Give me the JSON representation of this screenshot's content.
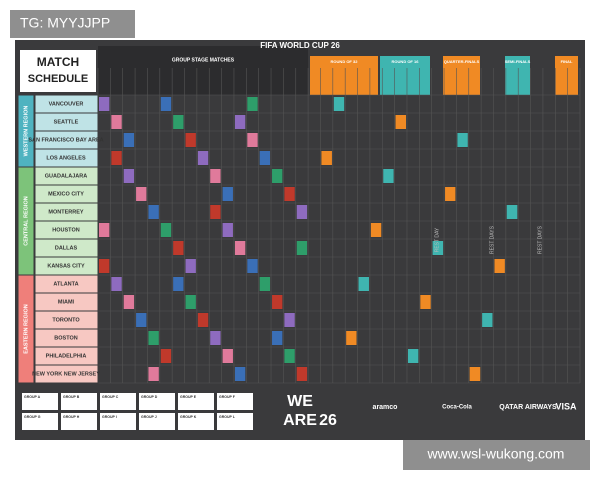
{
  "watermarks": {
    "top": "TG: MYYJJPP",
    "bottom": "www.wsl-wukong.com"
  },
  "poster": {
    "title": "FIFA WORLD CUP 26",
    "schedule_title": [
      "MATCH",
      "SCHEDULE"
    ],
    "stages": [
      "GROUP STAGE MATCHES",
      "ROUND OF 32",
      "ROUND OF 16",
      "QUARTER-FINALS",
      "SEMI-FINALS",
      "FINAL"
    ],
    "regions": [
      {
        "label": "WESTERN REGION",
        "cities": [
          "VANCOUVER",
          "SEATTLE",
          "SAN FRANCISCO BAY AREA",
          "LOS ANGELES"
        ]
      },
      {
        "label": "CENTRAL REGION",
        "cities": [
          "GUADALAJARA",
          "MEXICO CITY",
          "MONTERREY",
          "HOUSTON",
          "DALLAS",
          "KANSAS CITY"
        ]
      },
      {
        "label": "EASTERN REGION",
        "cities": [
          "ATLANTA",
          "MIAMI",
          "TORONTO",
          "BOSTON",
          "PHILADELPHIA",
          "NEW YORK NEW JERSEY"
        ]
      }
    ],
    "rest_days": [
      "REST DAY",
      "REST DAYS",
      "REST DAYS"
    ],
    "groups": [
      "GROUP A",
      "GROUP B",
      "GROUP C",
      "GROUP D",
      "GROUP E",
      "GROUP F",
      "GROUP G",
      "GROUP H",
      "GROUP I",
      "GROUP J",
      "GROUP K",
      "GROUP L"
    ],
    "slogan": [
      "WE",
      "ARE",
      "26"
    ],
    "sponsors": [
      "aramco",
      "Coca-Cola",
      "QATAR AIRWAYS",
      "VISA"
    ]
  }
}
